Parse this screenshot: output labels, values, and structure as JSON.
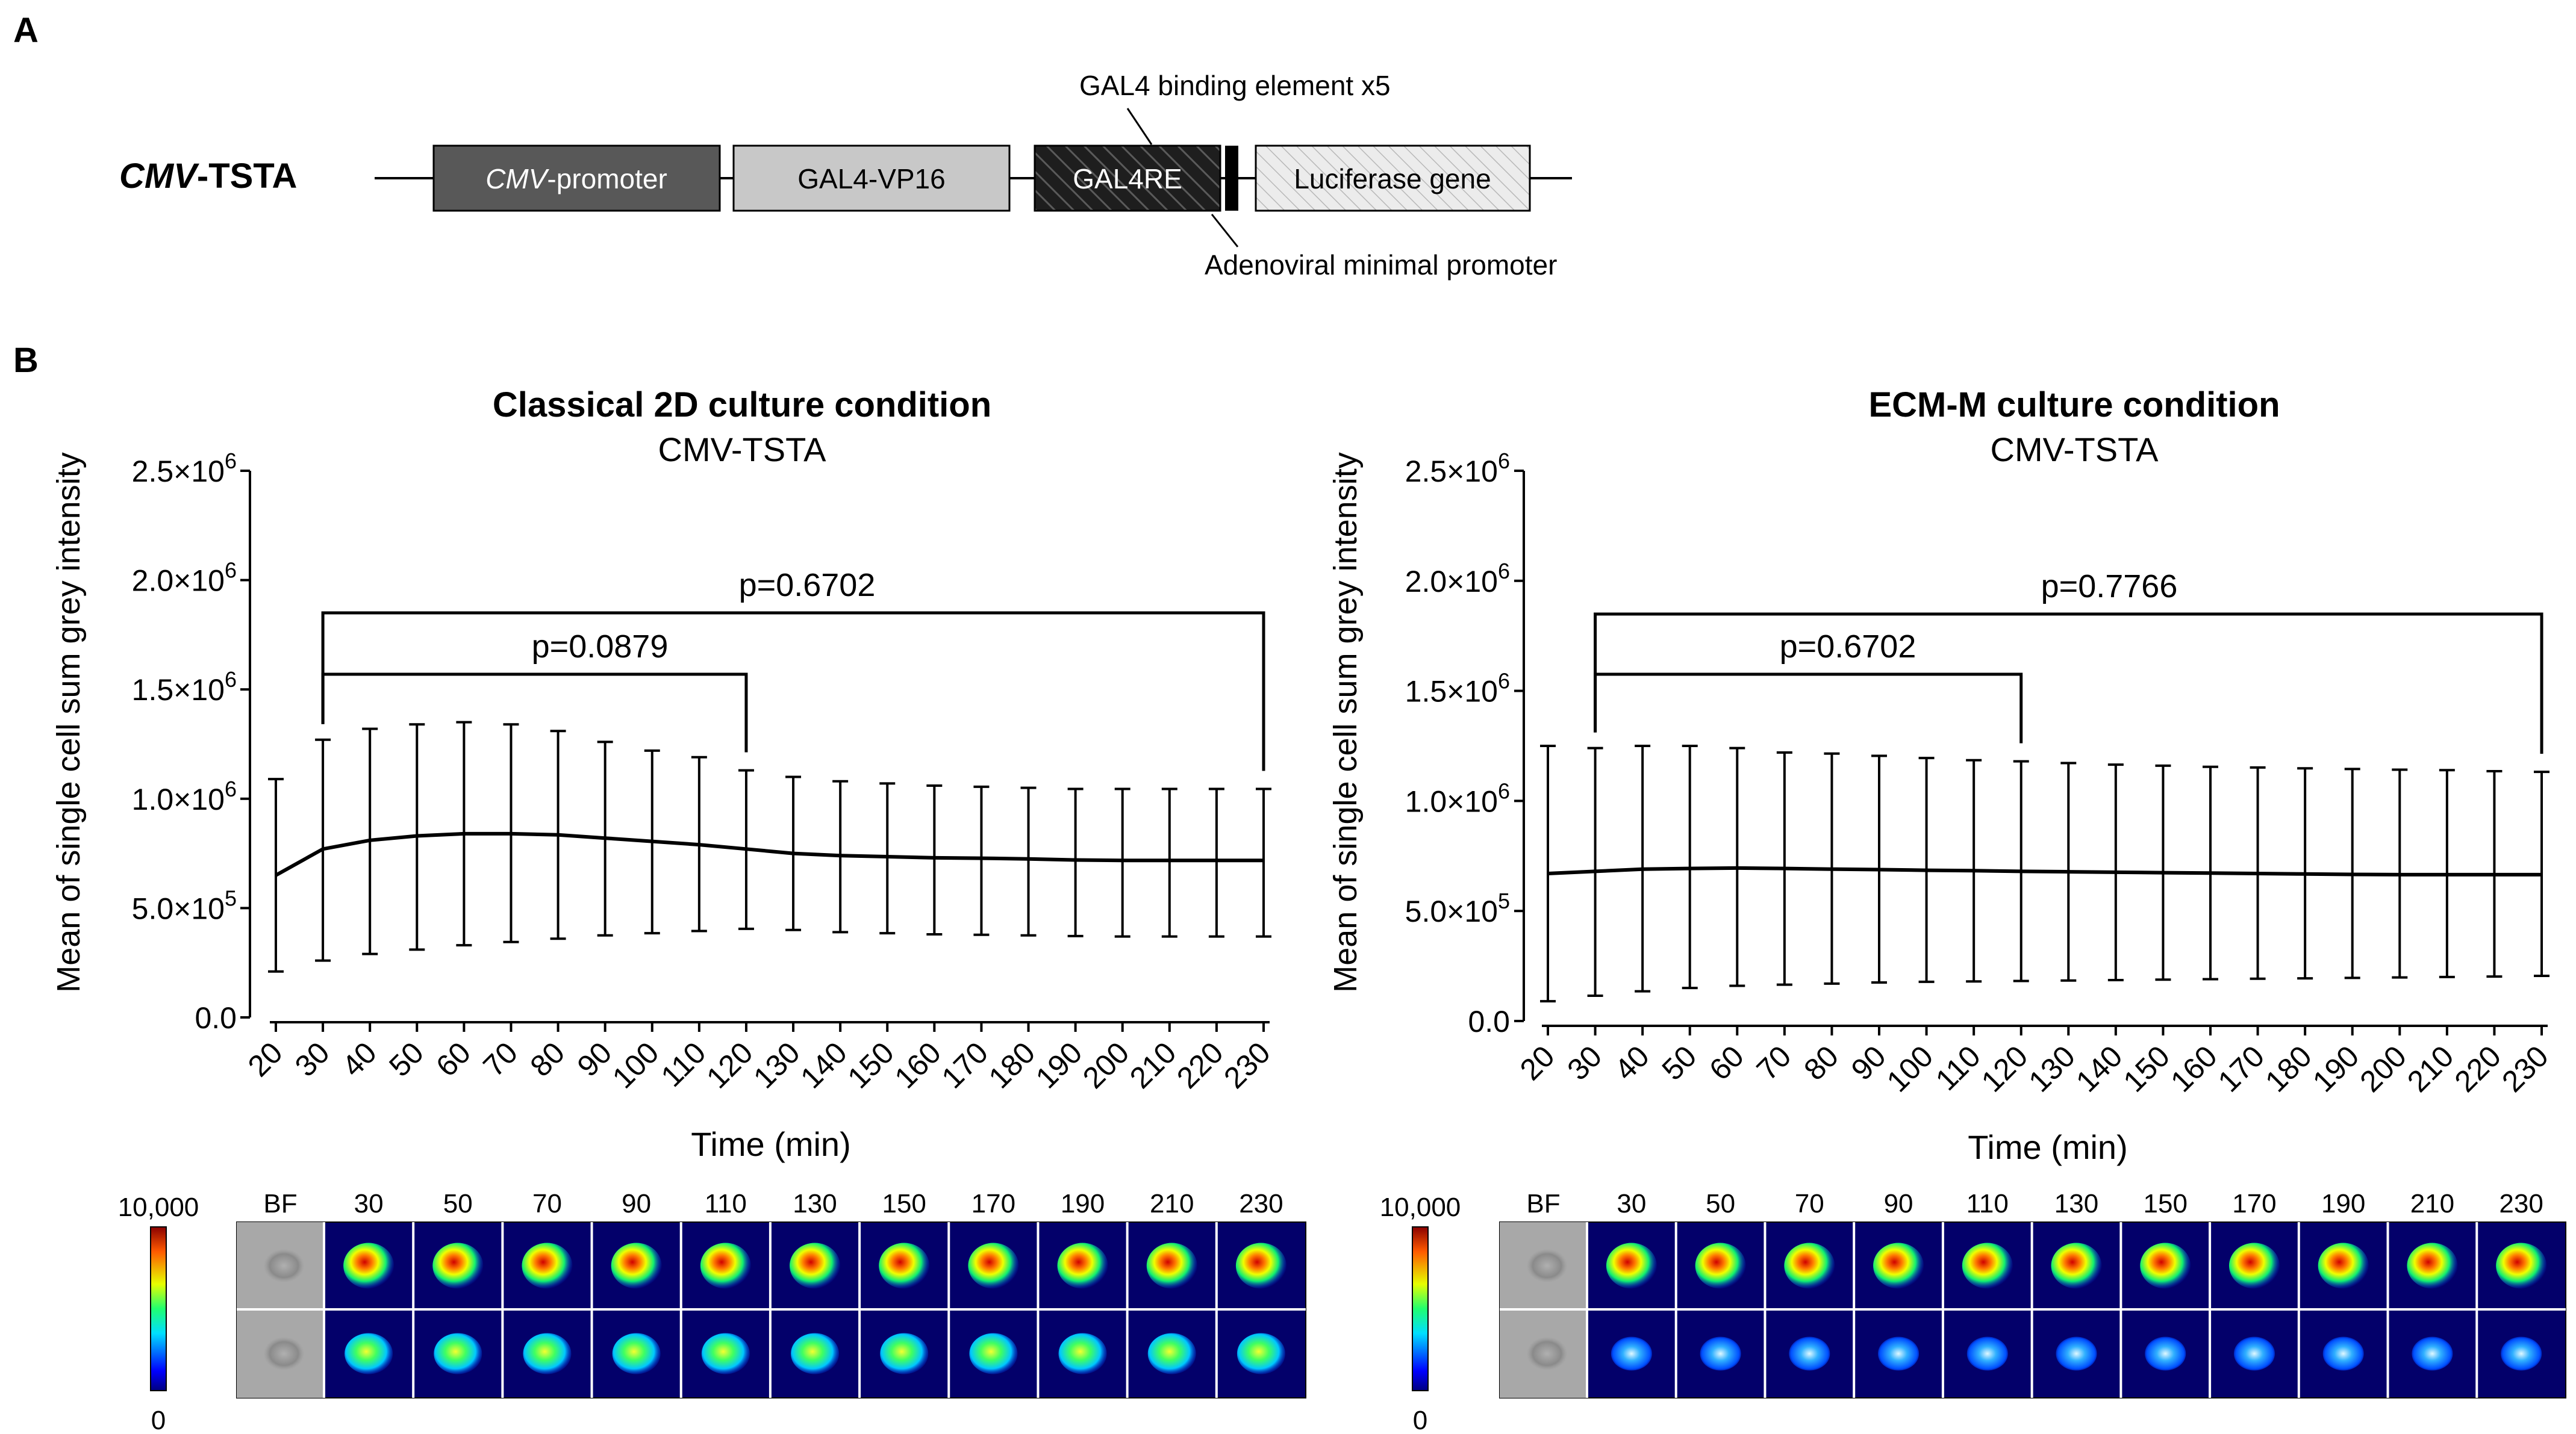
{
  "panel_a": {
    "panel_label": "A",
    "construct_name_italic": "CMV",
    "construct_name_rest": "-TSTA",
    "boxes": {
      "cmv_italic": "CMV",
      "cmv_rest": "-promoter",
      "gal4vp16": "GAL4-VP16",
      "gal4re": "GAL4RE",
      "luciferase": "Luciferase gene"
    },
    "callout_top": "GAL4  binding  element  x5",
    "callout_bottom": "Adenoviral  minimal  promoter",
    "colors": {
      "cmv": "#585858",
      "gal4vp16": "#c8c8c8",
      "gal4re": "#1e1e1e",
      "luciferase": "#e6e6e6"
    }
  },
  "panel_b": {
    "panel_label": "B"
  },
  "chart_data": [
    {
      "type": "line",
      "title": "Classical 2D culture condition",
      "subtitle": "CMV-TSTA",
      "xlabel": "Time (min)",
      "ylabel": "Mean of single cell sum grey intensity",
      "x": [
        20,
        30,
        40,
        50,
        60,
        70,
        80,
        90,
        100,
        110,
        120,
        130,
        140,
        150,
        160,
        170,
        180,
        190,
        200,
        210,
        220,
        230
      ],
      "x_tick_labels": [
        "20",
        "30",
        "40",
        "50",
        "60",
        "70",
        "80",
        "90",
        "100",
        "110",
        "120",
        "130",
        "140",
        "150",
        "160",
        "170",
        "180",
        "190",
        "200",
        "210",
        "220",
        "230"
      ],
      "mean": [
        650000,
        770000,
        810000,
        830000,
        840000,
        840000,
        835000,
        820000,
        805000,
        790000,
        770000,
        750000,
        740000,
        735000,
        730000,
        728000,
        725000,
        720000,
        718000,
        718000,
        718000,
        718000
      ],
      "err_upper": [
        1090000,
        1270000,
        1320000,
        1340000,
        1350000,
        1340000,
        1310000,
        1260000,
        1220000,
        1190000,
        1130000,
        1100000,
        1080000,
        1070000,
        1060000,
        1055000,
        1050000,
        1045000,
        1045000,
        1045000,
        1045000,
        1045000
      ],
      "err_lower": [
        210000,
        260000,
        290000,
        310000,
        330000,
        345000,
        360000,
        375000,
        385000,
        395000,
        405000,
        400000,
        390000,
        385000,
        380000,
        378000,
        375000,
        372000,
        370000,
        370000,
        370000,
        370000
      ],
      "ylim": [
        0,
        2500000
      ],
      "y_tick_values": [
        0,
        500000,
        1000000,
        1500000,
        2000000,
        2500000
      ],
      "y_tick_mantissa": [
        "0.0",
        "5.0×10",
        "1.0×10",
        "1.5×10",
        "2.0×10",
        "2.5×10"
      ],
      "y_tick_exponent": [
        "",
        "5",
        "6",
        "6",
        "6",
        "6"
      ],
      "brackets": [
        {
          "from": 30,
          "to": 120,
          "label": "p=0.0879"
        },
        {
          "from": 30,
          "to": 230,
          "label": "p=0.6702"
        }
      ]
    },
    {
      "type": "line",
      "title": "ECM-M culture condition",
      "subtitle": "CMV-TSTA",
      "xlabel": "Time (min)",
      "ylabel": "Mean of single cell sum grey intensity",
      "x": [
        20,
        30,
        40,
        50,
        60,
        70,
        80,
        90,
        100,
        110,
        120,
        130,
        140,
        150,
        160,
        170,
        180,
        190,
        200,
        210,
        220,
        230
      ],
      "x_tick_labels": [
        "20",
        "30",
        "40",
        "50",
        "60",
        "70",
        "80",
        "90",
        "100",
        "110",
        "120",
        "130",
        "140",
        "150",
        "160",
        "170",
        "180",
        "190",
        "200",
        "210",
        "220",
        "230"
      ],
      "mean": [
        670000,
        680000,
        690000,
        693000,
        695000,
        693000,
        690000,
        688000,
        685000,
        683000,
        680000,
        678000,
        676000,
        674000,
        672000,
        670000,
        668000,
        666000,
        665000,
        665000,
        665000,
        665000
      ],
      "err_upper": [
        1250000,
        1240000,
        1250000,
        1250000,
        1240000,
        1220000,
        1215000,
        1205000,
        1195000,
        1185000,
        1180000,
        1172000,
        1165000,
        1160000,
        1155000,
        1152000,
        1148000,
        1145000,
        1142000,
        1140000,
        1135000,
        1132000
      ],
      "err_lower": [
        90000,
        115000,
        135000,
        150000,
        160000,
        165000,
        170000,
        175000,
        178000,
        180000,
        182000,
        184000,
        186000,
        188000,
        190000,
        192000,
        194000,
        196000,
        198000,
        200000,
        202000,
        205000
      ],
      "ylim": [
        0,
        2500000
      ],
      "y_tick_values": [
        0,
        500000,
        1000000,
        1500000,
        2000000,
        2500000
      ],
      "y_tick_mantissa": [
        "0.0",
        "5.0×10",
        "1.0×10",
        "1.5×10",
        "2.0×10",
        "2.5×10"
      ],
      "y_tick_exponent": [
        "",
        "5",
        "6",
        "6",
        "6",
        "6"
      ],
      "brackets": [
        {
          "from": 30,
          "to": 120,
          "label": "p=0.6702"
        },
        {
          "from": 30,
          "to": 230,
          "label": "p=0.7766"
        }
      ]
    }
  ],
  "image_strips": [
    {
      "colorbar_max": "10,000",
      "colorbar_min": "0",
      "headers": [
        "BF",
        "30",
        "50",
        "70",
        "90",
        "110",
        "130",
        "150",
        "170",
        "190",
        "210",
        "230"
      ]
    },
    {
      "colorbar_max": "10,000",
      "colorbar_min": "0",
      "headers": [
        "BF",
        "30",
        "50",
        "70",
        "90",
        "110",
        "130",
        "150",
        "170",
        "190",
        "210",
        "230"
      ]
    }
  ]
}
